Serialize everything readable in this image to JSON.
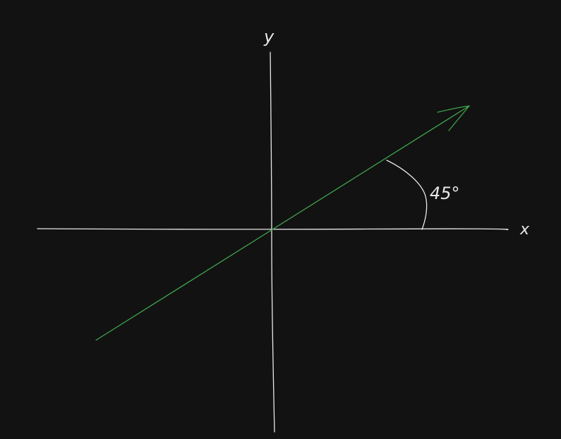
{
  "diagram": {
    "y_axis_label": "y",
    "x_axis_label": "x",
    "angle_label": "45°",
    "colors": {
      "background": "#121212",
      "axes": "#e8e8e8",
      "vector": "#3fa34d",
      "text": "#e8e8e8"
    }
  }
}
